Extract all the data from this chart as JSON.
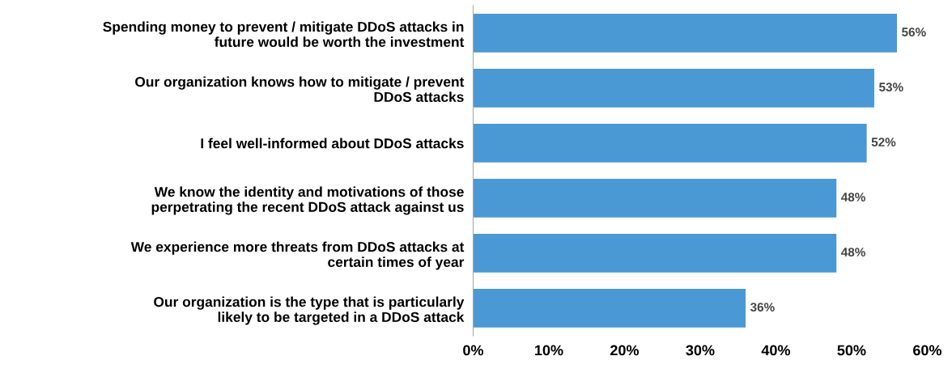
{
  "chart_data": {
    "type": "bar",
    "orientation": "horizontal",
    "categories": [
      "Spending money to prevent / mitigate DDoS attacks in future would be worth the investment",
      "Our organization knows how to mitigate / prevent DDoS attacks",
      "I feel well-informed about DDoS attacks",
      "We know the identity and motivations of those perpetrating the recent DDoS attack against us",
      "We experience more threats from DDoS attacks at certain times of year",
      "Our organization is the type that is particularly likely to be targeted in a DDoS attack"
    ],
    "values": [
      56,
      53,
      52,
      48,
      48,
      36
    ],
    "value_labels": [
      "56%",
      "53%",
      "52%",
      "48%",
      "48%",
      "36%"
    ],
    "color": "#4a98d4",
    "xlim": [
      0,
      60
    ],
    "xticks": [
      {
        "value": 0,
        "label": "0%"
      },
      {
        "value": 10,
        "label": "10%"
      },
      {
        "value": 20,
        "label": "20%"
      },
      {
        "value": 30,
        "label": "30%"
      },
      {
        "value": 40,
        "label": "40%"
      },
      {
        "value": 50,
        "label": "50%"
      },
      {
        "value": 60,
        "label": "60%"
      }
    ],
    "grid": false,
    "legend": false
  }
}
